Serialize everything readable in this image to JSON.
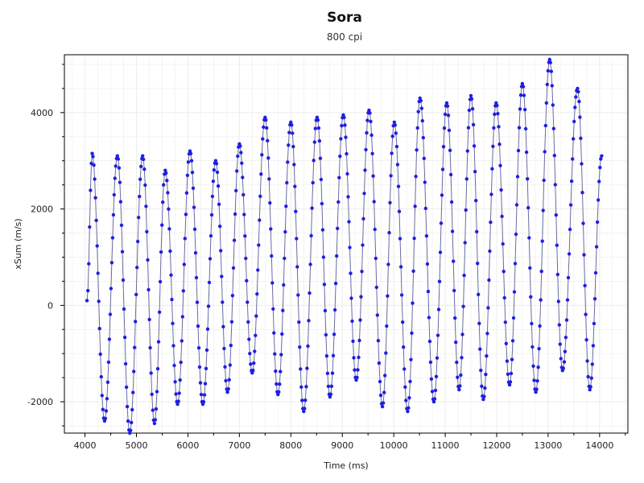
{
  "chart_data": {
    "type": "line",
    "title": "Sora",
    "subtitle": "800 cpi",
    "xlabel": "Time (ms)",
    "ylabel": "xSum (m/s)",
    "xlim": [
      3600,
      14550
    ],
    "ylim": [
      -2650,
      5200
    ],
    "xticks": [
      4000,
      5000,
      6000,
      7000,
      8000,
      9000,
      10000,
      11000,
      12000,
      13000,
      14000
    ],
    "xtick_labels": [
      "4000",
      "5000",
      "6000",
      "7000",
      "8000",
      "9000",
      "10000",
      "11000",
      "12000",
      "13000",
      "14000"
    ],
    "yticks": [
      -2000,
      0,
      2000,
      4000
    ],
    "ytick_labels": [
      "-2000",
      "0",
      "2000",
      "4000"
    ],
    "grid": true,
    "legend": "none",
    "colors": {
      "line": "#6a6aa0",
      "marker": "#1f1fe0",
      "grid": "#ececec",
      "axis": "#000000"
    },
    "series": [
      {
        "extrema": [
          [
            4040,
            100
          ],
          [
            4140,
            3150
          ],
          [
            4380,
            -2400
          ],
          [
            4630,
            3100
          ],
          [
            4870,
            -2650
          ],
          [
            5120,
            3100
          ],
          [
            5350,
            -2450
          ],
          [
            5560,
            2800
          ],
          [
            5800,
            -2050
          ],
          [
            6040,
            3200
          ],
          [
            6290,
            -2050
          ],
          [
            6540,
            3000
          ],
          [
            6770,
            -1800
          ],
          [
            7000,
            3350
          ],
          [
            7250,
            -1400
          ],
          [
            7500,
            3900
          ],
          [
            7750,
            -1850
          ],
          [
            8000,
            3800
          ],
          [
            8250,
            -2200
          ],
          [
            8510,
            3900
          ],
          [
            8760,
            -1900
          ],
          [
            9020,
            3950
          ],
          [
            9270,
            -1550
          ],
          [
            9520,
            4050
          ],
          [
            9780,
            -2100
          ],
          [
            10010,
            3800
          ],
          [
            10270,
            -2200
          ],
          [
            10510,
            4300
          ],
          [
            10780,
            -2000
          ],
          [
            11030,
            4200
          ],
          [
            11270,
            -1750
          ],
          [
            11500,
            4350
          ],
          [
            11740,
            -1950
          ],
          [
            11990,
            4200
          ],
          [
            12250,
            -1650
          ],
          [
            12500,
            4600
          ],
          [
            12760,
            -1800
          ],
          [
            13030,
            5100
          ],
          [
            13280,
            -1350
          ],
          [
            13570,
            4500
          ],
          [
            13810,
            -1750
          ],
          [
            14040,
            3100
          ]
        ]
      }
    ]
  }
}
